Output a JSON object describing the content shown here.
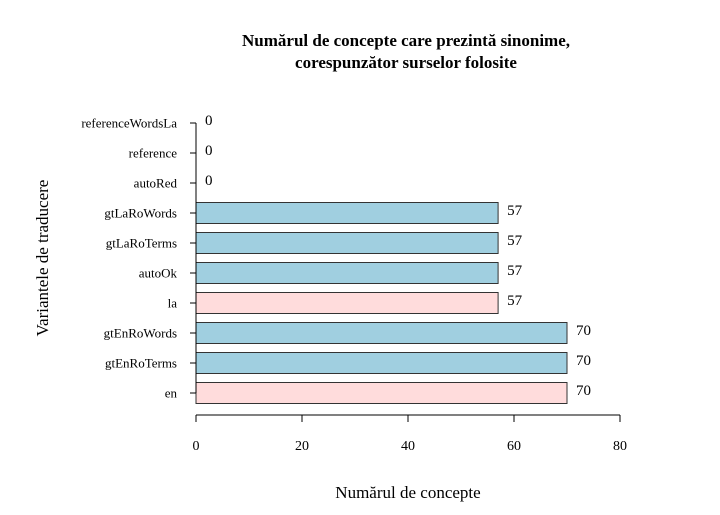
{
  "chart_data": {
    "type": "bar",
    "orientation": "horizontal",
    "title_line1": "Numărul de concepte care prezintă sinonime,",
    "title_line2": "corespunzător surselor folosite",
    "xlabel": "Numărul de concepte",
    "ylabel": "Variantele de traducere",
    "xlim": [
      0,
      80
    ],
    "xticks": [
      0,
      20,
      40,
      60,
      80
    ],
    "grid": false,
    "categories": [
      "referenceWordsLa",
      "reference",
      "autoRed",
      "gtLaRoWords",
      "gtLaRoTerms",
      "autoOk",
      "la",
      "gtEnRoWords",
      "gtEnRoTerms",
      "en"
    ],
    "values": [
      0,
      0,
      0,
      57,
      57,
      57,
      57,
      70,
      70,
      70
    ],
    "bar_colors": [
      "#a0cfe0",
      "#a0cfe0",
      "#a0cfe0",
      "#a0cfe0",
      "#a0cfe0",
      "#a0cfe0",
      "#ffdcdc",
      "#a0cfe0",
      "#a0cfe0",
      "#ffdcdc"
    ]
  }
}
